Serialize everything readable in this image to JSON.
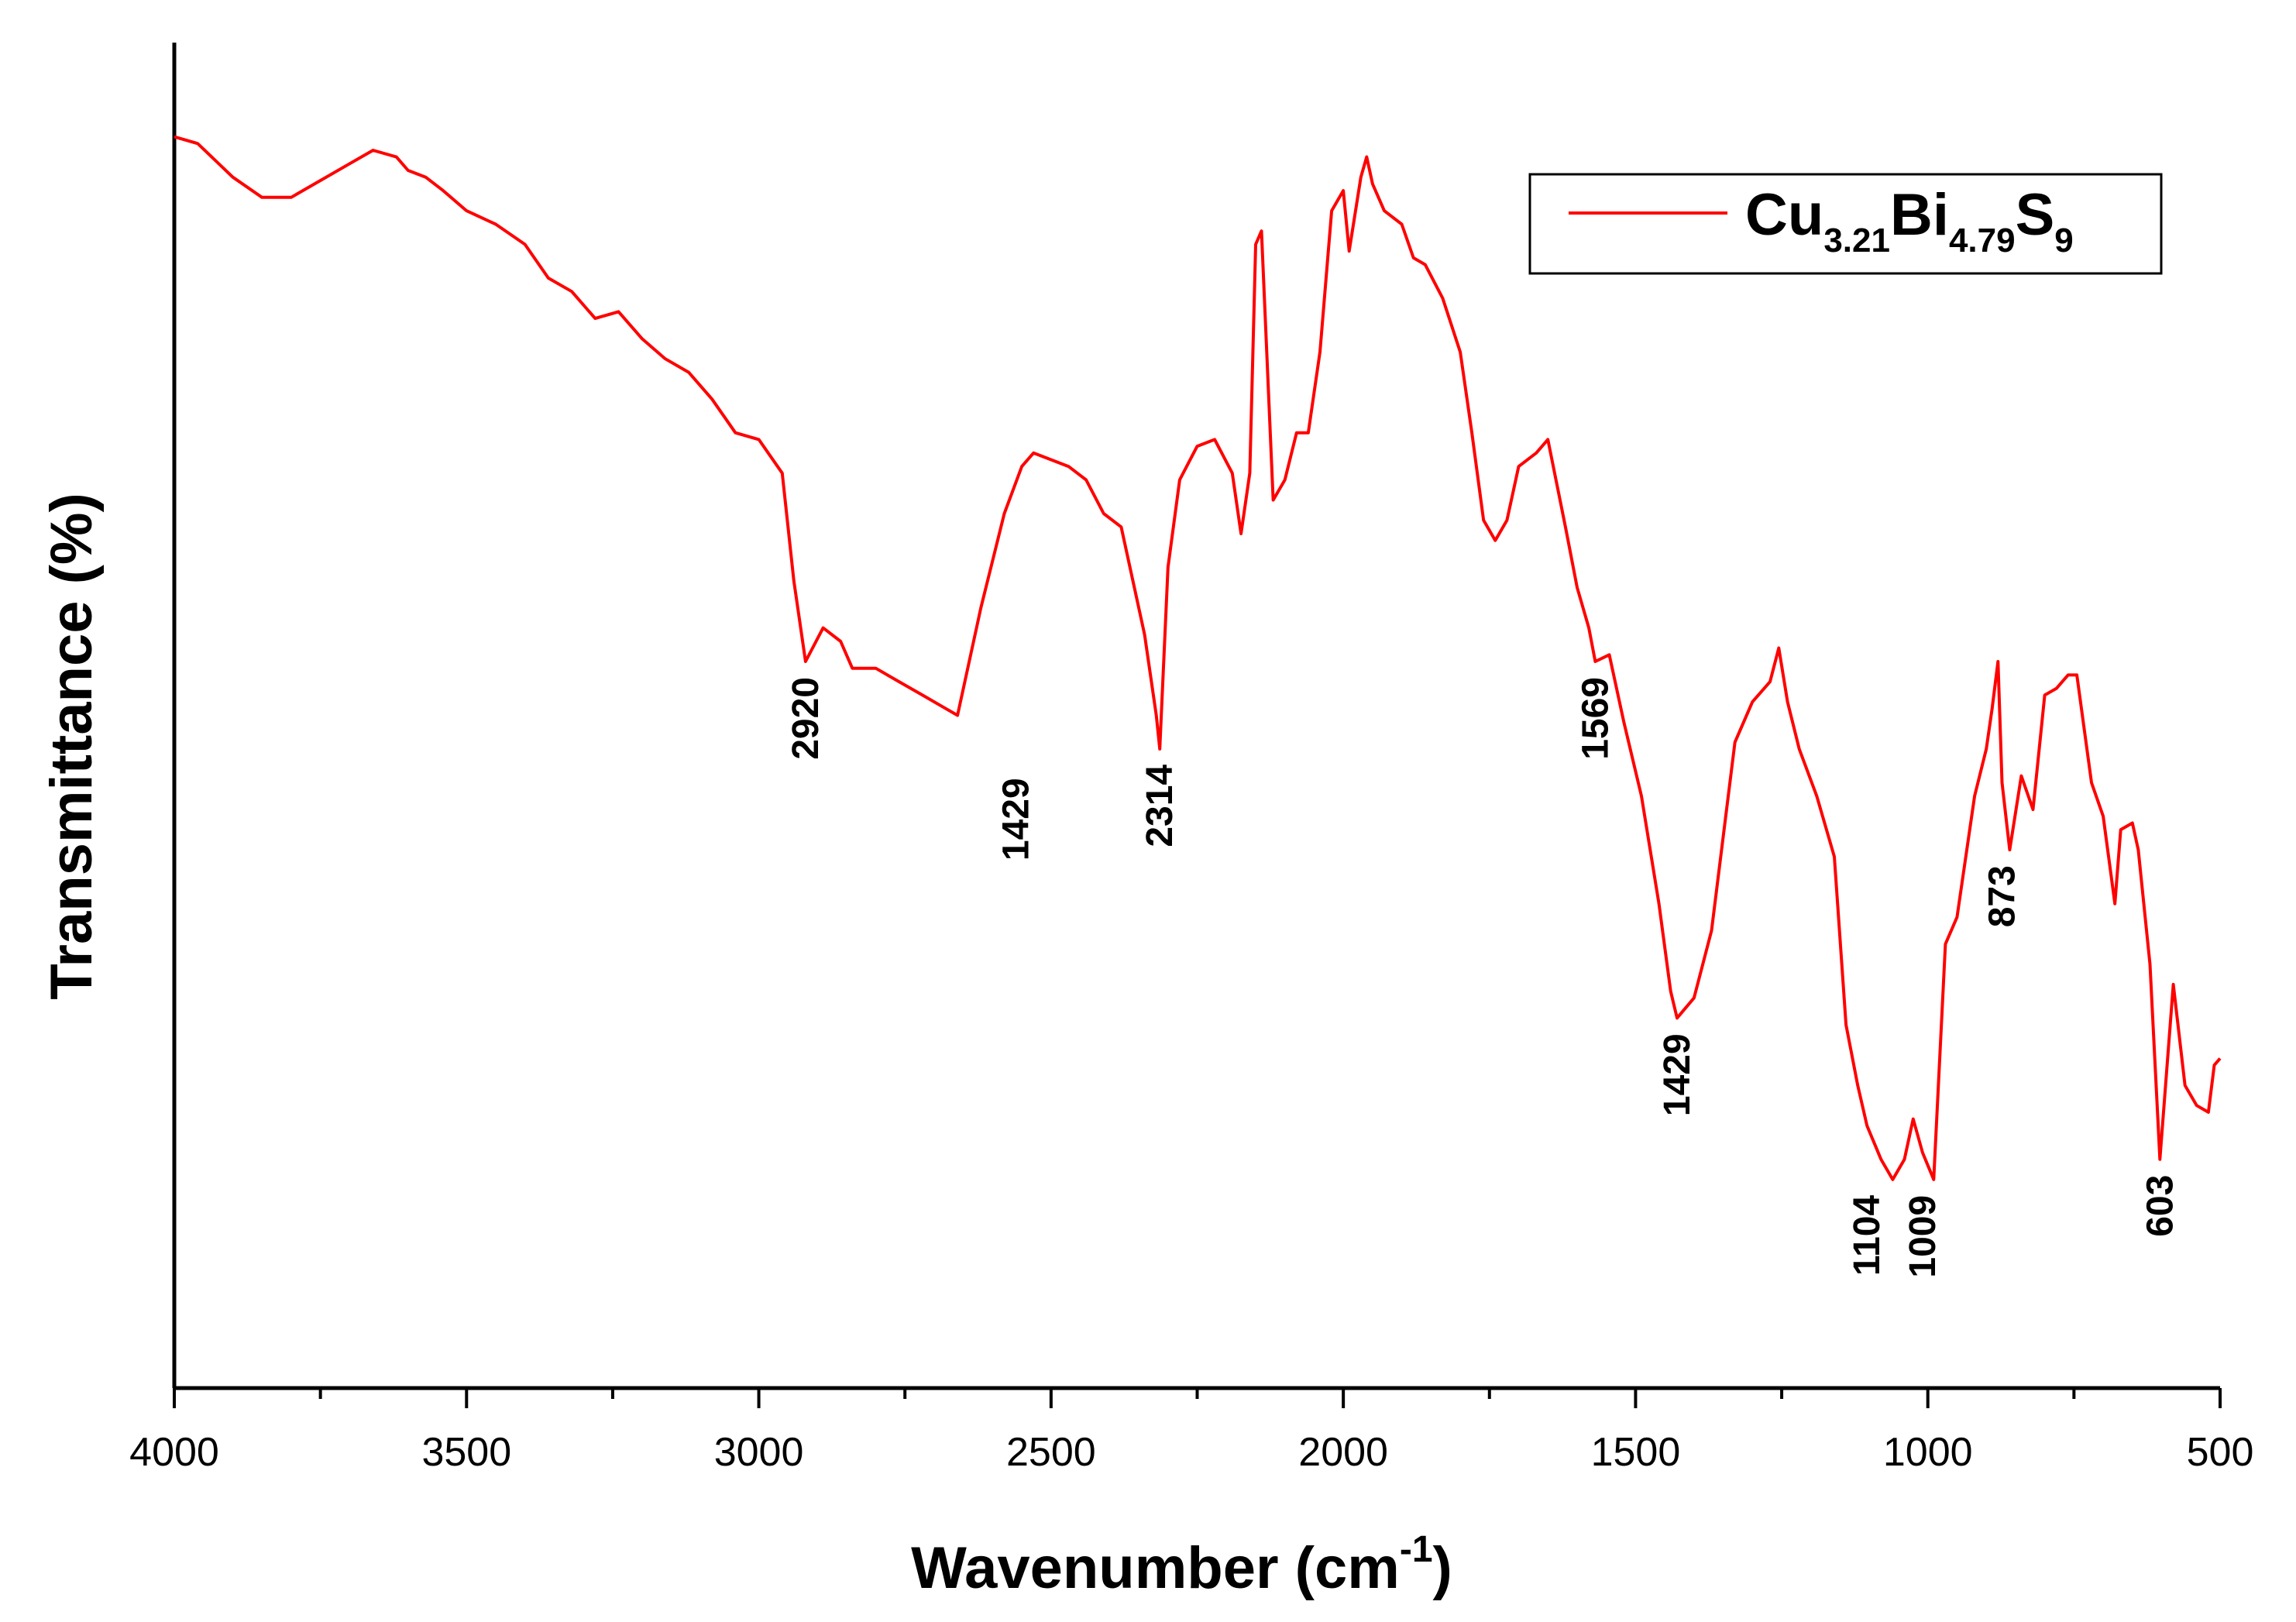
{
  "chart_data": {
    "type": "line",
    "title": "",
    "xlabel": "Wavenumber (cm",
    "xlabel_sup": "-1",
    "xlabel_close": ")",
    "ylabel": "Transmittance (%)",
    "xlim": [
      4000,
      500
    ],
    "ylim": [
      0,
      100
    ],
    "x_reversed": true,
    "xticks": [
      4000,
      3500,
      3000,
      2500,
      2000,
      1500,
      1000,
      500
    ],
    "xtick_labels": [
      "4000",
      "3500",
      "3000",
      "2500",
      "2000",
      "1500",
      "1000",
      "500"
    ],
    "y_ticks_shown": false,
    "legend": {
      "placement": "top-right",
      "parts": [
        {
          "text": "Cu",
          "sub": false
        },
        {
          "text": "3.21",
          "sub": true
        },
        {
          "text": "Bi",
          "sub": false
        },
        {
          "text": "4.79",
          "sub": true
        },
        {
          "text": "S",
          "sub": false
        },
        {
          "text": "9",
          "sub": true
        }
      ]
    },
    "series": [
      {
        "name": "Cu3.21Bi4.79S9",
        "color": "#ff0000",
        "x": [
          4000,
          3960,
          3900,
          3850,
          3800,
          3760,
          3700,
          3660,
          3620,
          3600,
          3570,
          3540,
          3500,
          3450,
          3400,
          3360,
          3320,
          3280,
          3240,
          3200,
          3160,
          3120,
          3080,
          3040,
          3000,
          2960,
          2940,
          2920,
          2890,
          2860,
          2840,
          2800,
          2760,
          2720,
          2680,
          2660,
          2620,
          2580,
          2550,
          2530,
          2500,
          2470,
          2440,
          2410,
          2380,
          2360,
          2340,
          2320,
          2314,
          2300,
          2280,
          2250,
          2220,
          2190,
          2175,
          2160,
          2150,
          2140,
          2120,
          2100,
          2080,
          2060,
          2040,
          2020,
          2000,
          1990,
          1970,
          1960,
          1950,
          1930,
          1900,
          1880,
          1860,
          1830,
          1800,
          1780,
          1760,
          1740,
          1720,
          1700,
          1670,
          1650,
          1620,
          1600,
          1580,
          1569,
          1545,
          1520,
          1490,
          1460,
          1440,
          1429,
          1400,
          1370,
          1330,
          1300,
          1270,
          1255,
          1240,
          1220,
          1190,
          1160,
          1140,
          1120,
          1104,
          1080,
          1060,
          1040,
          1025,
          1009,
          990,
          970,
          950,
          920,
          900,
          890,
          880,
          873,
          860,
          840,
          820,
          800,
          780,
          760,
          745,
          720,
          700,
          680,
          670,
          650,
          640,
          620,
          603,
          580,
          560,
          540,
          520,
          510,
          500
        ],
        "y": [
          93.0,
          92.5,
          90.0,
          88.5,
          88.5,
          89.5,
          91.0,
          92.0,
          91.5,
          90.5,
          90.0,
          89.0,
          87.5,
          86.5,
          85.0,
          82.5,
          81.5,
          79.5,
          80.0,
          78.0,
          76.5,
          75.5,
          73.5,
          71.0,
          70.5,
          68.0,
          60.0,
          54.0,
          56.5,
          55.5,
          53.5,
          53.5,
          52.5,
          51.5,
          50.5,
          50.0,
          58.0,
          65.0,
          68.5,
          69.5,
          69.0,
          68.5,
          67.5,
          65.0,
          64.0,
          60.0,
          56.0,
          50.0,
          47.5,
          61.0,
          67.5,
          70.0,
          70.5,
          68.0,
          63.5,
          68.0,
          85.0,
          86.0,
          66.0,
          67.5,
          71.0,
          71.0,
          77.0,
          87.5,
          89.0,
          84.5,
          90.0,
          91.5,
          89.5,
          87.5,
          86.5,
          84.0,
          83.5,
          81.0,
          77.0,
          71.0,
          64.5,
          63.0,
          64.5,
          68.5,
          69.5,
          70.5,
          64.0,
          59.5,
          56.5,
          54.0,
          54.5,
          49.5,
          44.0,
          36.0,
          29.5,
          27.5,
          29.0,
          34.0,
          48.0,
          51.0,
          52.5,
          55.0,
          51.0,
          47.5,
          44.0,
          39.5,
          27.0,
          22.5,
          19.5,
          17.0,
          15.5,
          17.0,
          20.0,
          17.5,
          15.5,
          33.0,
          35.0,
          44.0,
          47.5,
          50.5,
          54.0,
          45.0,
          40.0,
          45.5,
          43.0,
          51.5,
          52.0,
          53.0,
          53.0,
          45.0,
          42.5,
          36.0,
          41.5,
          42.0,
          40.0,
          31.5,
          17.0,
          30.0,
          22.5,
          21.0,
          20.5,
          24.0,
          24.5
        ]
      }
    ],
    "annotations": [
      {
        "text": "2920",
        "x": 2920,
        "y": 54.0
      },
      {
        "text": "1429",
        "x": 2560,
        "y": 46.5
      },
      {
        "text": "2314",
        "x": 2314,
        "y": 47.5
      },
      {
        "text": "1569",
        "x": 1569,
        "y": 54.0
      },
      {
        "text": "1429",
        "x": 1429,
        "y": 27.5
      },
      {
        "text": "1104",
        "x": 1104,
        "y": 15.5
      },
      {
        "text": "1009",
        "x": 1009,
        "y": 15.5
      },
      {
        "text": "873",
        "x": 873,
        "y": 40.0
      },
      {
        "text": "603",
        "x": 603,
        "y": 17.0
      }
    ]
  }
}
